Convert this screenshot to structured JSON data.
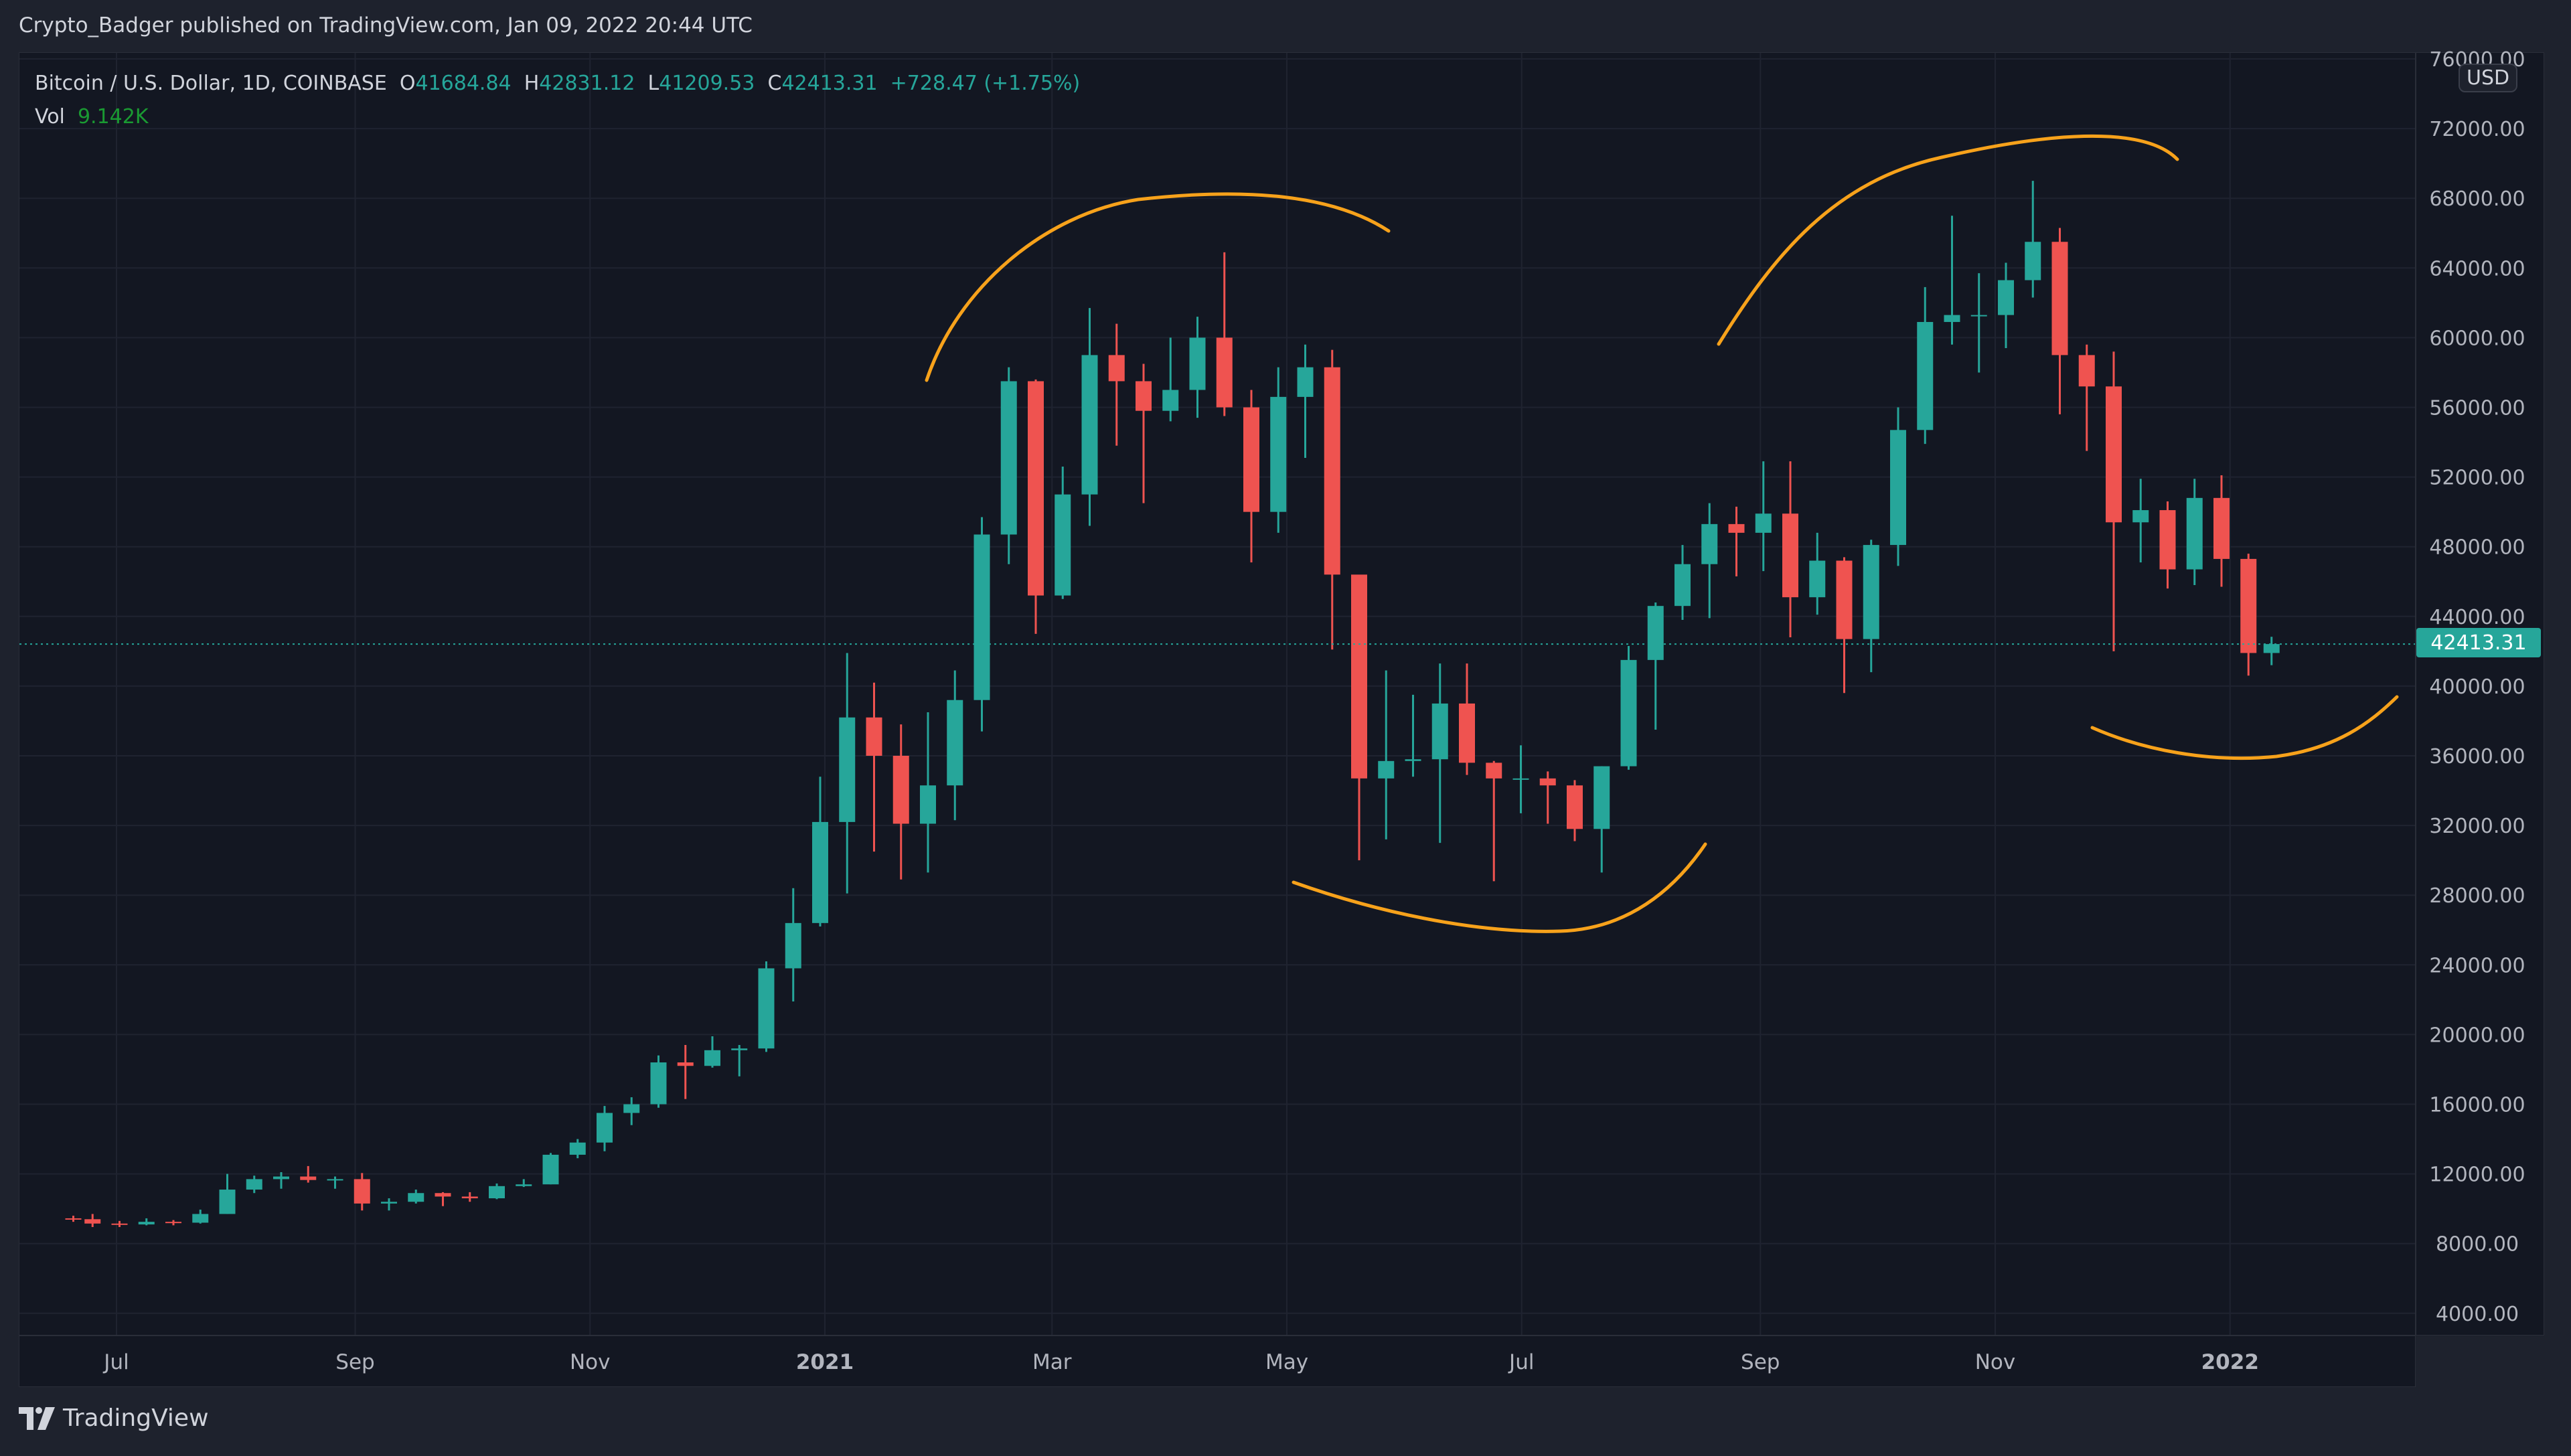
{
  "header": {
    "title": "Crypto_Badger published on TradingView.com, Jan 09, 2022 20:44 UTC"
  },
  "legend": {
    "symbol": "Bitcoin / U.S. Dollar, 1D, COINBASE",
    "o_label": "O",
    "o": "41684.84",
    "h_label": "H",
    "h": "42831.12",
    "l_label": "L",
    "l": "41209.53",
    "c_label": "C",
    "c": "42413.31",
    "change": "+728.47 (+1.75%)",
    "vol_label": "Vol",
    "vol": "9.142K"
  },
  "currency_badge": "USD",
  "last_price_label": "42413.31",
  "footer": {
    "brand": "TradingView"
  },
  "colors": {
    "up": "#26a69a",
    "down": "#ef5350",
    "annotation": "#f7a21b",
    "background": "#131722"
  },
  "chart_data": {
    "type": "candlestick",
    "ylim": [
      4000,
      76000
    ],
    "y_ticks": [
      4000,
      8000,
      12000,
      16000,
      20000,
      24000,
      28000,
      32000,
      36000,
      40000,
      44000,
      48000,
      52000,
      56000,
      60000,
      64000,
      68000,
      72000,
      76000
    ],
    "x_ticks": [
      {
        "date": "2020-07-01",
        "label": "Jul"
      },
      {
        "date": "2020-09-01",
        "label": "Sep"
      },
      {
        "date": "2020-11-01",
        "label": "Nov"
      },
      {
        "date": "2021-01-01",
        "label": "2021"
      },
      {
        "date": "2021-03-01",
        "label": "Mar"
      },
      {
        "date": "2021-05-01",
        "label": "May"
      },
      {
        "date": "2021-07-01",
        "label": "Jul"
      },
      {
        "date": "2021-09-01",
        "label": "Sep"
      },
      {
        "date": "2021-11-01",
        "label": "Nov"
      },
      {
        "date": "2022-01-01",
        "label": "2022"
      }
    ],
    "last_price": 42413.31,
    "grid": true,
    "ohlc_columns": [
      "date",
      "open",
      "high",
      "low",
      "close"
    ],
    "ohlc": [
      [
        "2020-06-17",
        9450,
        9600,
        9250,
        9400
      ],
      [
        "2020-06-22",
        9400,
        9700,
        8950,
        9150
      ],
      [
        "2020-06-29",
        9150,
        9300,
        8950,
        9100
      ],
      [
        "2020-07-06",
        9100,
        9450,
        9050,
        9250
      ],
      [
        "2020-07-13",
        9250,
        9350,
        9050,
        9200
      ],
      [
        "2020-07-20",
        9200,
        9950,
        9150,
        9700
      ],
      [
        "2020-07-27",
        9700,
        12000,
        9700,
        11100
      ],
      [
        "2020-08-03",
        11100,
        11900,
        10900,
        11700
      ],
      [
        "2020-08-10",
        11700,
        12100,
        11150,
        11850
      ],
      [
        "2020-08-17",
        11850,
        12450,
        11500,
        11650
      ],
      [
        "2020-08-24",
        11650,
        11850,
        11150,
        11700
      ],
      [
        "2020-08-31",
        11700,
        12050,
        9900,
        10300
      ],
      [
        "2020-09-07",
        10300,
        10600,
        9900,
        10400
      ],
      [
        "2020-09-14",
        10400,
        11100,
        10300,
        10900
      ],
      [
        "2020-09-21",
        10900,
        10950,
        10150,
        10700
      ],
      [
        "2020-09-28",
        10700,
        10950,
        10400,
        10600
      ],
      [
        "2020-10-05",
        10600,
        11450,
        10550,
        11300
      ],
      [
        "2020-10-12",
        11300,
        11700,
        11250,
        11400
      ],
      [
        "2020-10-19",
        11400,
        13200,
        11400,
        13100
      ],
      [
        "2020-10-26",
        13100,
        14000,
        12900,
        13800
      ],
      [
        "2020-11-02",
        13800,
        15900,
        13300,
        15500
      ],
      [
        "2020-11-09",
        15500,
        16400,
        14800,
        16000
      ],
      [
        "2020-11-16",
        16000,
        18800,
        15800,
        18400
      ],
      [
        "2020-11-23",
        18400,
        19400,
        16300,
        18200
      ],
      [
        "2020-11-30",
        18200,
        19900,
        18100,
        19100
      ],
      [
        "2020-12-07",
        19100,
        19400,
        17600,
        19200
      ],
      [
        "2020-12-14",
        19200,
        24200,
        19000,
        23800
      ],
      [
        "2020-12-21",
        23800,
        28400,
        21900,
        26400
      ],
      [
        "2020-12-28",
        26400,
        34800,
        26200,
        32200
      ],
      [
        "2021-01-04",
        32200,
        41900,
        28100,
        38200
      ],
      [
        "2021-01-11",
        38200,
        40200,
        30500,
        36000
      ],
      [
        "2021-01-18",
        36000,
        37800,
        28900,
        32100
      ],
      [
        "2021-01-25",
        32100,
        38500,
        29300,
        34300
      ],
      [
        "2021-02-01",
        34300,
        40900,
        32300,
        39200
      ],
      [
        "2021-02-08",
        39200,
        49700,
        37400,
        48700
      ],
      [
        "2021-02-15",
        48700,
        58300,
        47000,
        57500
      ],
      [
        "2021-02-22",
        57500,
        57600,
        43000,
        45200
      ],
      [
        "2021-03-01",
        45200,
        52600,
        45000,
        51000
      ],
      [
        "2021-03-08",
        51000,
        61700,
        49200,
        59000
      ],
      [
        "2021-03-15",
        59000,
        60800,
        53800,
        57500
      ],
      [
        "2021-03-22",
        57500,
        58500,
        50500,
        55800
      ],
      [
        "2021-03-29",
        55800,
        60000,
        55200,
        57000
      ],
      [
        "2021-04-05",
        57000,
        61200,
        55400,
        60000
      ],
      [
        "2021-04-12",
        60000,
        64900,
        55500,
        56000
      ],
      [
        "2021-04-19",
        56000,
        57000,
        47100,
        50000
      ],
      [
        "2021-04-26",
        50000,
        58300,
        48800,
        56600
      ],
      [
        "2021-05-03",
        56600,
        59600,
        53100,
        58300
      ],
      [
        "2021-05-10",
        58300,
        59300,
        42100,
        46400
      ],
      [
        "2021-05-17",
        46400,
        45800,
        30000,
        34700
      ],
      [
        "2021-05-24",
        34700,
        40900,
        31200,
        35700
      ],
      [
        "2021-05-31",
        35700,
        39500,
        34800,
        35800
      ],
      [
        "2021-06-07",
        35800,
        41300,
        31000,
        39000
      ],
      [
        "2021-06-14",
        39000,
        41300,
        34900,
        35600
      ],
      [
        "2021-06-21",
        35600,
        35700,
        28800,
        34700
      ],
      [
        "2021-06-28",
        34700,
        36600,
        32700,
        34700
      ],
      [
        "2021-07-05",
        34700,
        35100,
        32100,
        34300
      ],
      [
        "2021-07-12",
        34300,
        34600,
        31100,
        31800
      ],
      [
        "2021-07-19",
        31800,
        35400,
        29300,
        35400
      ],
      [
        "2021-07-26",
        35400,
        42300,
        35200,
        41500
      ],
      [
        "2021-08-02",
        41500,
        44800,
        37500,
        44600
      ],
      [
        "2021-08-09",
        44600,
        48100,
        43800,
        47000
      ],
      [
        "2021-08-16",
        47000,
        50500,
        43900,
        49300
      ],
      [
        "2021-08-23",
        49300,
        50300,
        46300,
        48800
      ],
      [
        "2021-08-30",
        48800,
        52900,
        46600,
        49900
      ],
      [
        "2021-09-06",
        49900,
        52900,
        42800,
        45100
      ],
      [
        "2021-09-13",
        45100,
        48800,
        44100,
        47200
      ],
      [
        "2021-09-20",
        47200,
        47400,
        39600,
        42700
      ],
      [
        "2021-09-27",
        42700,
        48400,
        40800,
        48100
      ],
      [
        "2021-10-04",
        48100,
        56000,
        46900,
        54700
      ],
      [
        "2021-10-11",
        54700,
        62900,
        53900,
        60900
      ],
      [
        "2021-10-18",
        60900,
        67000,
        59600,
        61300
      ],
      [
        "2021-10-25",
        61300,
        63700,
        58000,
        61300
      ],
      [
        "2021-11-01",
        61300,
        64300,
        59400,
        63300
      ],
      [
        "2021-11-08",
        63300,
        69000,
        62300,
        65500
      ],
      [
        "2021-11-15",
        65500,
        66300,
        55600,
        59000
      ],
      [
        "2021-11-22",
        59000,
        59600,
        53500,
        57200
      ],
      [
        "2021-11-29",
        57200,
        59200,
        42000,
        49400
      ],
      [
        "2021-12-06",
        49400,
        51900,
        47100,
        50100
      ],
      [
        "2021-12-13",
        50100,
        50600,
        45600,
        46700
      ],
      [
        "2021-12-20",
        46700,
        51900,
        45800,
        50800
      ],
      [
        "2021-12-27",
        50800,
        52100,
        45700,
        47300
      ],
      [
        "2022-01-03",
        47300,
        47600,
        40600,
        41900
      ],
      [
        "2022-01-09",
        41900,
        42830,
        41200,
        42413
      ]
    ]
  }
}
